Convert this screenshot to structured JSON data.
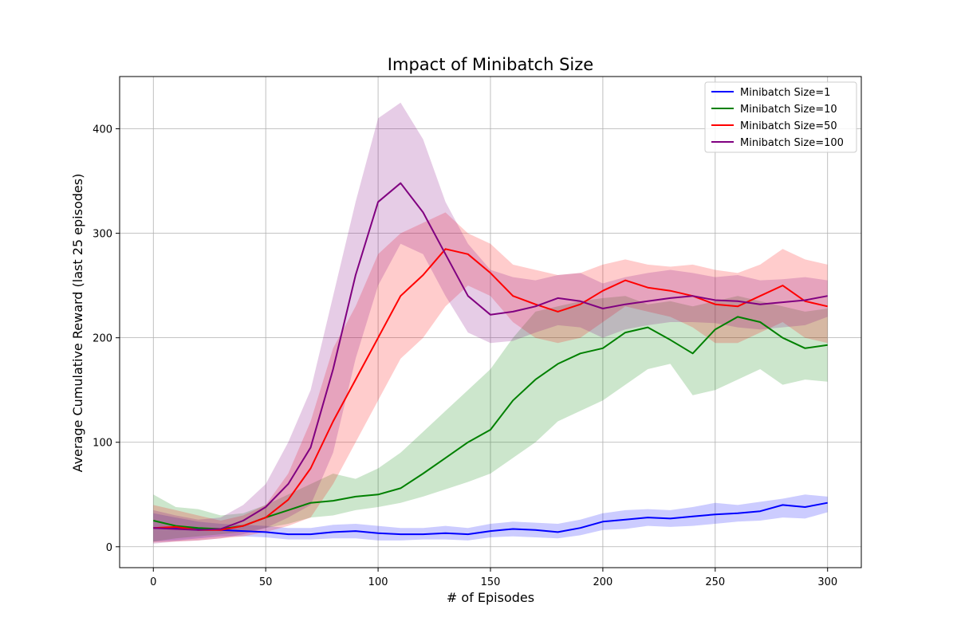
{
  "chart_data": {
    "type": "line",
    "title": "Impact of Minibatch Size",
    "xlabel": "# of Episodes",
    "ylabel": "Average Cumulative Reward (last 25 episodes)",
    "xlim": [
      -15,
      315
    ],
    "ylim": [
      -20,
      450
    ],
    "xticks": [
      0,
      50,
      100,
      150,
      200,
      250,
      300
    ],
    "yticks": [
      0,
      100,
      200,
      300,
      400
    ],
    "grid": true,
    "legend_position": "top-right",
    "series": [
      {
        "name": "Minibatch Size=1",
        "color": "#0000ff",
        "x": [
          0,
          10,
          20,
          30,
          40,
          50,
          60,
          70,
          80,
          90,
          100,
          110,
          120,
          130,
          140,
          150,
          160,
          170,
          180,
          190,
          200,
          210,
          220,
          230,
          240,
          250,
          260,
          270,
          280,
          290,
          300
        ],
        "mean": [
          18,
          18,
          17,
          16,
          15,
          14,
          12,
          12,
          14,
          15,
          13,
          12,
          12,
          13,
          12,
          15,
          17,
          16,
          14,
          18,
          24,
          26,
          28,
          27,
          29,
          31,
          32,
          34,
          40,
          38,
          42
        ],
        "upper": [
          32,
          28,
          24,
          22,
          21,
          20,
          18,
          18,
          21,
          22,
          20,
          18,
          18,
          20,
          18,
          22,
          24,
          23,
          22,
          26,
          32,
          35,
          36,
          35,
          38,
          42,
          40,
          43,
          46,
          50,
          48
        ],
        "lower": [
          5,
          6,
          8,
          10,
          10,
          9,
          7,
          7,
          8,
          8,
          6,
          6,
          7,
          7,
          6,
          9,
          10,
          9,
          8,
          11,
          16,
          17,
          20,
          19,
          20,
          22,
          24,
          25,
          28,
          27,
          33
        ]
      },
      {
        "name": "Minibatch Size=10",
        "color": "#008000",
        "x": [
          0,
          10,
          20,
          30,
          40,
          50,
          60,
          70,
          80,
          90,
          100,
          110,
          120,
          130,
          140,
          150,
          160,
          170,
          180,
          190,
          200,
          210,
          220,
          230,
          240,
          250,
          260,
          270,
          280,
          290,
          300
        ],
        "mean": [
          25,
          20,
          18,
          17,
          20,
          28,
          35,
          42,
          44,
          48,
          50,
          56,
          70,
          85,
          100,
          112,
          140,
          160,
          175,
          185,
          190,
          205,
          210,
          198,
          185,
          208,
          220,
          215,
          200,
          190,
          193
        ],
        "upper": [
          50,
          38,
          36,
          30,
          32,
          40,
          50,
          60,
          70,
          65,
          75,
          90,
          110,
          130,
          150,
          170,
          200,
          225,
          230,
          235,
          238,
          240,
          232,
          235,
          230,
          235,
          240,
          235,
          230,
          225,
          228
        ],
        "lower": [
          5,
          8,
          10,
          12,
          14,
          18,
          22,
          28,
          30,
          35,
          38,
          42,
          48,
          55,
          62,
          70,
          85,
          100,
          120,
          130,
          140,
          155,
          170,
          175,
          145,
          150,
          160,
          170,
          155,
          160,
          158
        ]
      },
      {
        "name": "Minibatch Size=50",
        "color": "#ff0000",
        "x": [
          0,
          10,
          20,
          30,
          40,
          50,
          60,
          70,
          80,
          90,
          100,
          110,
          120,
          130,
          140,
          150,
          160,
          170,
          180,
          190,
          200,
          210,
          220,
          230,
          240,
          250,
          260,
          270,
          280,
          290,
          300
        ],
        "mean": [
          18,
          19,
          16,
          16,
          20,
          28,
          45,
          75,
          120,
          160,
          200,
          240,
          260,
          285,
          280,
          262,
          240,
          232,
          225,
          232,
          245,
          255,
          248,
          245,
          240,
          232,
          230,
          240,
          250,
          235,
          230
        ],
        "upper": [
          40,
          35,
          30,
          25,
          30,
          40,
          70,
          120,
          190,
          230,
          280,
          300,
          310,
          320,
          300,
          290,
          270,
          265,
          260,
          262,
          270,
          275,
          270,
          268,
          270,
          265,
          262,
          270,
          285,
          275,
          270
        ],
        "lower": [
          4,
          5,
          6,
          8,
          10,
          14,
          20,
          28,
          60,
          100,
          140,
          180,
          200,
          230,
          250,
          240,
          215,
          200,
          195,
          200,
          215,
          230,
          225,
          220,
          210,
          195,
          195,
          205,
          215,
          200,
          195
        ]
      },
      {
        "name": "Minibatch Size=100",
        "color": "#800080",
        "x": [
          0,
          10,
          20,
          30,
          40,
          50,
          60,
          70,
          80,
          90,
          100,
          110,
          120,
          130,
          140,
          150,
          160,
          170,
          180,
          190,
          200,
          210,
          220,
          230,
          240,
          250,
          260,
          270,
          280,
          290,
          300
        ],
        "mean": [
          18,
          17,
          16,
          17,
          25,
          38,
          60,
          95,
          170,
          260,
          330,
          348,
          320,
          280,
          240,
          222,
          225,
          230,
          238,
          235,
          228,
          232,
          235,
          238,
          240,
          236,
          235,
          232,
          234,
          236,
          240
        ],
        "upper": [
          35,
          30,
          26,
          28,
          40,
          60,
          100,
          150,
          240,
          330,
          410,
          425,
          390,
          330,
          290,
          265,
          258,
          255,
          260,
          262,
          252,
          258,
          262,
          265,
          262,
          258,
          260,
          255,
          256,
          258,
          255
        ],
        "lower": [
          3,
          5,
          6,
          8,
          12,
          18,
          28,
          40,
          90,
          180,
          250,
          290,
          280,
          240,
          205,
          195,
          197,
          205,
          212,
          210,
          200,
          208,
          212,
          215,
          215,
          214,
          210,
          208,
          210,
          212,
          220
        ]
      }
    ]
  }
}
